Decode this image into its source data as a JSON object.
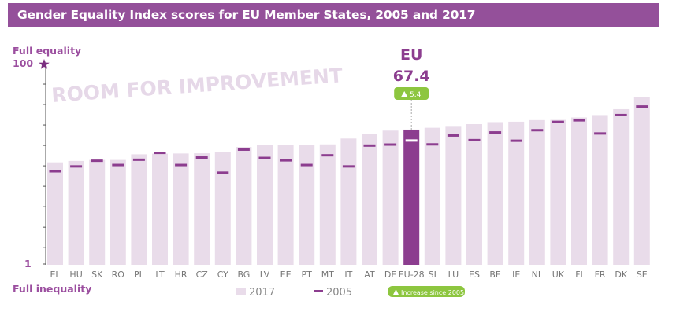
{
  "header": {
    "title": "Gender Equality Index scores for EU Member States, 2005 and 2017"
  },
  "colors": {
    "title_bg": "#94509a",
    "bar_2017": "#e9dcea",
    "bar_eu": "#8c3d8f",
    "marker_2005": "#8c3d8f",
    "eu_2005_marker": "#ffffff",
    "increase_badge": "#8dc63f",
    "axis_text": "#9b4e9f",
    "watermark": "#e6d8e8"
  },
  "chart_data": {
    "type": "bar",
    "title": "Gender Equality Index scores for EU Member States, 2005 and 2017",
    "xlabel": "",
    "ylabel": "",
    "ylim": [
      1,
      100
    ],
    "y_ticks": [
      1,
      100
    ],
    "y_top_label": "Full equality",
    "y_bottom_label": "Full inequality",
    "top_marker_icon": "star-icon",
    "watermark": "ROOM FOR IMPROVEMENT",
    "grid": false,
    "legend_position": "bottom",
    "categories": [
      "EL",
      "HU",
      "SK",
      "RO",
      "PL",
      "LT",
      "HR",
      "CZ",
      "CY",
      "BG",
      "LV",
      "EE",
      "PT",
      "MT",
      "IT",
      "AT",
      "DE",
      "EU-28",
      "SI",
      "LU",
      "ES",
      "BE",
      "IE",
      "NL",
      "UK",
      "FI",
      "FR",
      "DK",
      "SE"
    ],
    "series": [
      {
        "name": "2017",
        "kind": "bar",
        "values": [
          51.2,
          51.9,
          52.4,
          52.4,
          55.2,
          55.5,
          55.6,
          55.7,
          56.3,
          58.8,
          59.7,
          59.8,
          59.9,
          60.1,
          63.0,
          65.3,
          66.9,
          67.4,
          68.3,
          69.2,
          70.1,
          71.1,
          71.3,
          72.1,
          72.2,
          73.4,
          74.6,
          77.5,
          83.6
        ]
      },
      {
        "name": "2005",
        "kind": "marker",
        "values": [
          46.8,
          49.2,
          52.0,
          49.9,
          52.5,
          55.9,
          49.9,
          53.6,
          46.1,
          57.5,
          53.4,
          52.2,
          49.9,
          54.7,
          49.2,
          59.5,
          60.0,
          62.0,
          60.1,
          64.5,
          62.2,
          66.0,
          61.9,
          67.1,
          71.2,
          72.0,
          65.5,
          74.6,
          78.8
        ]
      }
    ],
    "highlight": {
      "category": "EU-28",
      "label": "EU",
      "value": "67.4",
      "increase": "5.4"
    },
    "legend": [
      {
        "label": "2017",
        "kind": "bar"
      },
      {
        "label": "2005",
        "kind": "marker"
      },
      {
        "label": "Increase since 2005",
        "kind": "badge"
      }
    ]
  }
}
